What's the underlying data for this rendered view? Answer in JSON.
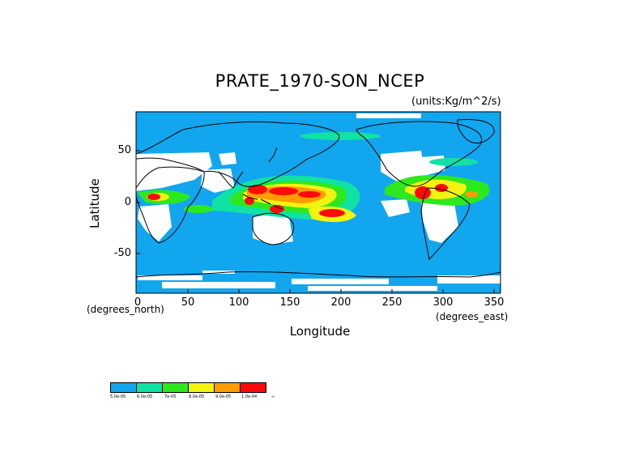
{
  "title": "PRATE_1970-SON_NCEP",
  "units": "(units:Kg/m^2/s)",
  "axes": {
    "ylabel": "Latitude",
    "xlabel": "Longitude",
    "x_note": "(degrees_north)",
    "x_note_right": "(degrees_east)",
    "yticks": [
      "50",
      "0",
      "-50"
    ],
    "xticks": [
      "0",
      "50",
      "100",
      "150",
      "200",
      "250",
      "300",
      "350"
    ],
    "x_range": [
      0,
      357.5
    ],
    "y_range": [
      -88,
      88
    ]
  },
  "colors": {
    "ocean_low": "#12a6ee",
    "land_missing": "#ffffff",
    "coast": "#000000"
  },
  "legend": {
    "colors": [
      "#12a6ee",
      "#10e2a4",
      "#2ee81f",
      "#f3f310",
      "#ff9c00",
      "#ff0a0a"
    ],
    "labels": [
      "5.0e-05",
      "6.0e-05",
      "7e-05",
      "8.0e-05",
      "9.0e-05",
      "1.0e-04",
      "∞"
    ]
  },
  "chart_data": {
    "type": "heatmap",
    "variable": "PRATE",
    "x": "longitude (degrees_east), 0-360",
    "y": "latitude, -90-90",
    "levels": [
      5e-05,
      6e-05,
      7e-05,
      8e-05,
      9e-05,
      0.0001
    ],
    "high_regions": [
      {
        "lon": [
          110,
          180
        ],
        "lat": [
          -10,
          15
        ]
      },
      {
        "lon": [
          170,
          205
        ],
        "lat": [
          -10,
          -5
        ]
      },
      {
        "lon": [
          270,
          300
        ],
        "lat": [
          0,
          15
        ]
      },
      {
        "lon": [
          0,
          25
        ],
        "lat": [
          5,
          10
        ]
      }
    ]
  }
}
